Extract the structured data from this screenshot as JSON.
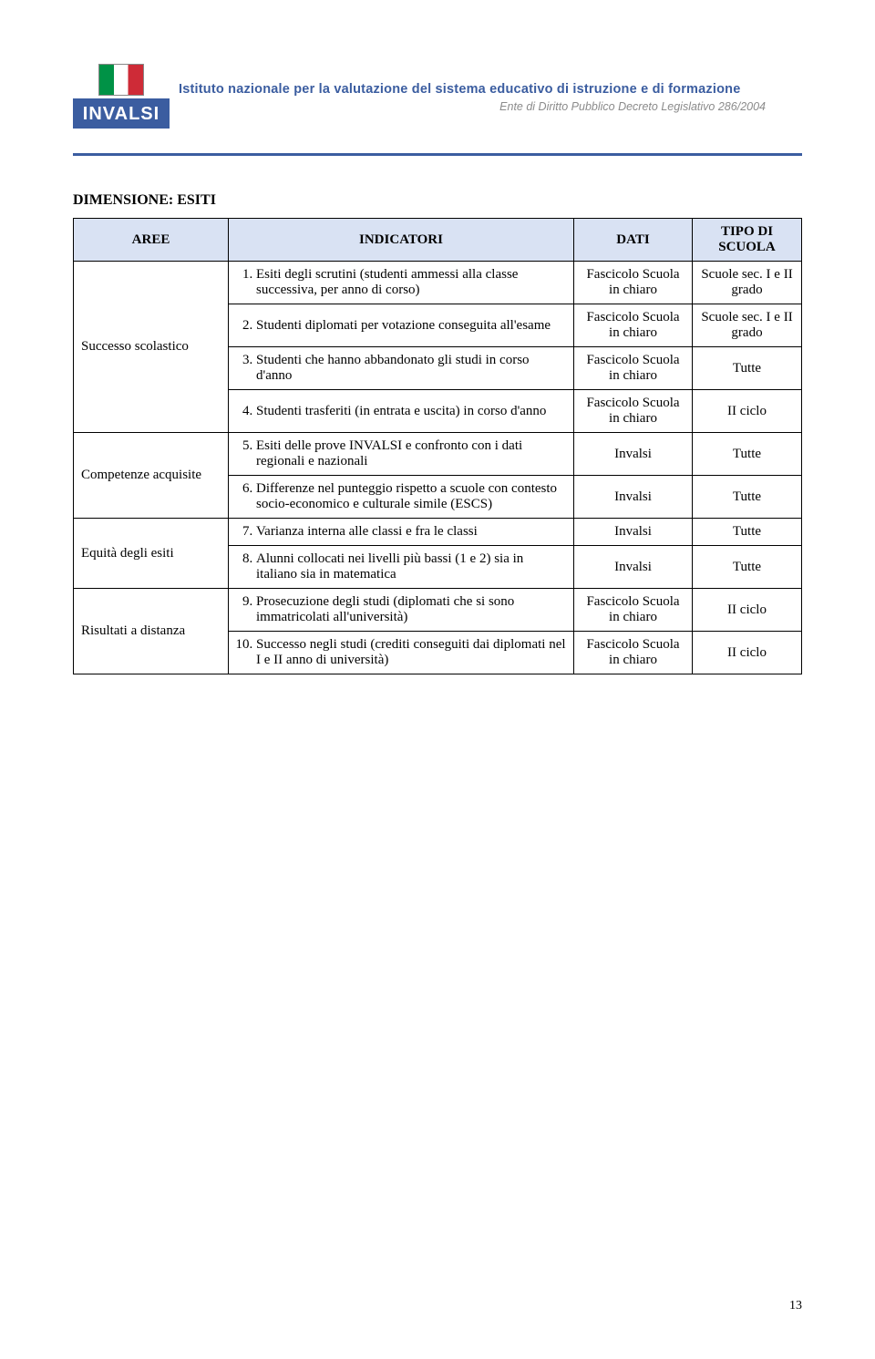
{
  "banner": {
    "logo_text": "INVALSI",
    "title_main": "Istituto nazionale per la valutazione del sistema educativo di istruzione e di formazione",
    "title_sub": "Ente di Diritto Pubblico Decreto Legislativo 286/2004"
  },
  "section_title": "DIMENSIONE: ESITI",
  "headers": {
    "aree": "AREE",
    "indicatori": "INDICATORI",
    "dati": "DATI",
    "tipo": "TIPO DI SCUOLA"
  },
  "dati_val_fascicolo": "Fascicolo Scuola in chiaro",
  "dati_val_invalsi": "Invalsi",
  "tipo_val_sec": "Scuole sec. I e II grado",
  "tipo_val_tutte": "Tutte",
  "tipo_val_ciclo": "II ciclo",
  "aree": {
    "successo": "Successo scolastico",
    "competenze": "Competenze acquisite",
    "equita": "Equità degli esiti",
    "risultati": "Risultati a distanza"
  },
  "indicators": {
    "i1": "Esiti degli scrutini (studenti ammessi alla classe successiva, per anno di corso)",
    "i2": "Studenti diplomati per votazione conseguita all'esame",
    "i3": "Studenti che hanno abbandonato gli studi in corso d'anno",
    "i4": "Studenti trasferiti (in entrata e uscita) in corso d'anno",
    "i5": "Esiti delle prove INVALSI e confronto con i dati regionali e nazionali",
    "i6": "Differenze nel punteggio rispetto a scuole con contesto socio-economico e culturale simile (ESCS)",
    "i7": "Varianza interna alle classi e fra le classi",
    "i8": "Alunni collocati nei livelli più bassi (1 e 2) sia in italiano sia in matematica",
    "i9": "Prosecuzione degli studi (diplomati che si sono immatricolati all'università)",
    "i10": "Successo negli studi (crediti conseguiti dai diplomati nel I e II anno di università)"
  },
  "page_number": "13",
  "colors": {
    "header_bg": "#d9e2f3",
    "banner_blue": "#3b5da0",
    "subtitle_gray": "#8b8b8b"
  }
}
